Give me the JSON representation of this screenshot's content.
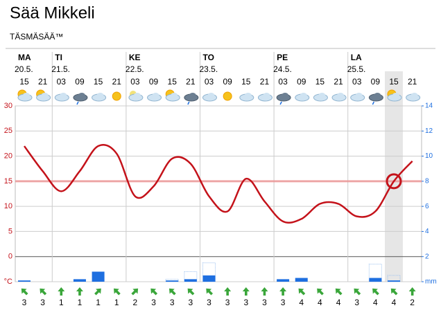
{
  "header": {
    "title": "Sää Mikkeli",
    "subtitle": "TÄSMÄSÄÄ™"
  },
  "chart_data": {
    "type": "line",
    "days": [
      {
        "name": "MA",
        "date": "20.5.",
        "col": 0
      },
      {
        "name": "TI",
        "date": "21.5.",
        "col": 2
      },
      {
        "name": "KE",
        "date": "22.5.",
        "col": 6
      },
      {
        "name": "TO",
        "date": "23.5.",
        "col": 10
      },
      {
        "name": "PE",
        "date": "24.5.",
        "col": 14
      },
      {
        "name": "LA",
        "date": "25.5.",
        "col": 18
      }
    ],
    "categories": [
      "15",
      "21",
      "03",
      "09",
      "15",
      "21",
      "03",
      "09",
      "15",
      "21",
      "03",
      "09",
      "15",
      "21",
      "03",
      "09",
      "15",
      "21",
      "03",
      "09",
      "15",
      "21"
    ],
    "symbols": [
      "sun-cloud",
      "sun-cloud",
      "cloud",
      "rain",
      "cloud",
      "sun",
      "moon-cloud",
      "cloud",
      "sun-cloud",
      "rain",
      "cloud",
      "sun",
      "cloud",
      "cloud",
      "rain",
      "cloud",
      "cloud",
      "cloud",
      "cloud",
      "rain",
      "sun-cloud",
      "cloud"
    ],
    "series": [
      {
        "name": "temperature",
        "color": "#c4121a",
        "values": [
          22,
          17,
          13,
          17,
          22,
          20.5,
          12,
          14,
          19.5,
          18.5,
          12,
          9,
          15.5,
          11,
          7,
          7.5,
          10.5,
          10.5,
          8,
          9,
          15,
          19
        ]
      },
      {
        "name": "precipitation",
        "color": "#1e6fe0",
        "axis": "y2",
        "values": [
          0.1,
          0,
          0,
          0.2,
          0.8,
          0,
          0,
          0,
          0.1,
          0.2,
          0.5,
          0,
          0,
          0,
          0.2,
          0.3,
          0,
          0,
          0,
          0.3,
          0.1,
          0
        ]
      },
      {
        "name": "precipitation-max",
        "color": "#9ec2f0",
        "axis": "y2",
        "values": [
          0,
          0,
          0,
          0,
          0,
          0,
          0,
          0,
          0.2,
          0.8,
          1.5,
          0,
          0,
          0,
          0,
          0,
          0,
          0,
          0,
          1.4,
          0.5,
          0
        ]
      }
    ],
    "wind": {
      "values": [
        3,
        3,
        1,
        1,
        1,
        1,
        2,
        3,
        3,
        3,
        3,
        3,
        3,
        3,
        3,
        4,
        4,
        4,
        3,
        4,
        4,
        2
      ],
      "direction": [
        315,
        315,
        0,
        0,
        45,
        315,
        45,
        315,
        315,
        315,
        315,
        0,
        0,
        0,
        0,
        315,
        315,
        315,
        315,
        315,
        315,
        0
      ],
      "color": "#3aa63a"
    },
    "threshold": 15,
    "highlight_index": 20,
    "ylim": [
      -5,
      30
    ],
    "yticks": [
      {
        "value": -5,
        "label": "°C"
      },
      0,
      5,
      10,
      15,
      20,
      25,
      30
    ],
    "y2lim": [
      0,
      14
    ],
    "y2ticks": [
      {
        "value": 0,
        "label": "mm"
      },
      2,
      4,
      6,
      8,
      10,
      12,
      14
    ],
    "grid": true
  }
}
